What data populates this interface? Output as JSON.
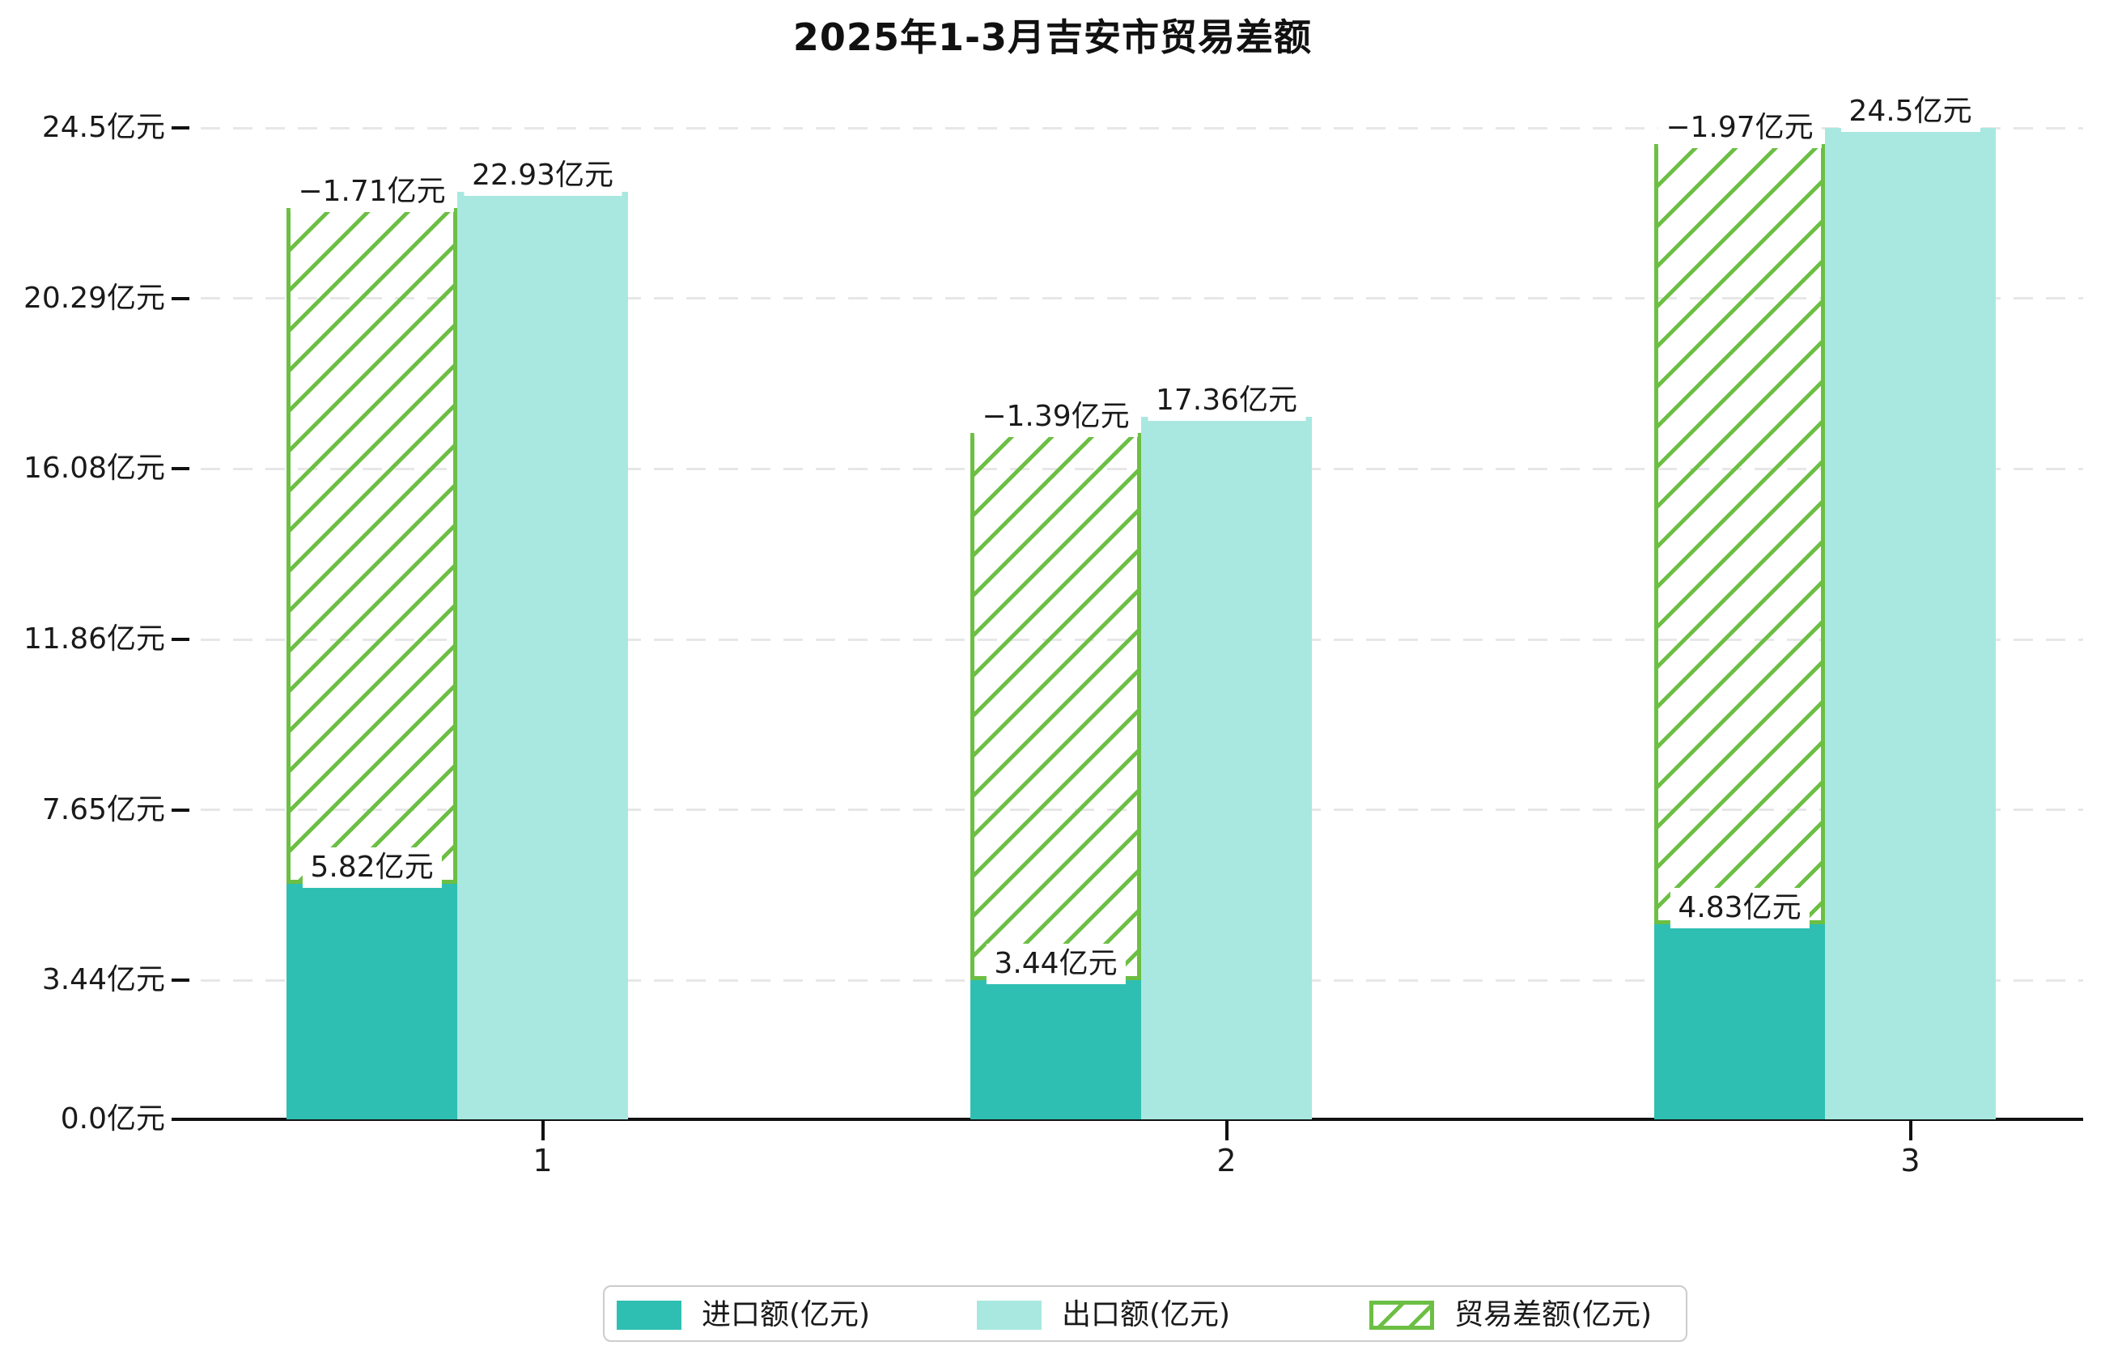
{
  "title": "2025年1-3月吉安市贸易差额",
  "chart_data": {
    "type": "bar",
    "categories": [
      "1",
      "2",
      "3"
    ],
    "series": [
      {
        "name": "进口额(亿元)",
        "role": "import",
        "values": [
          5.82,
          3.44,
          4.83
        ],
        "value_labels": [
          "5.82亿元",
          "3.44亿元",
          "4.83亿元"
        ],
        "color": "#2ebfb2",
        "style": "solid"
      },
      {
        "name": "出口额(亿元)",
        "role": "export",
        "values": [
          22.93,
          17.36,
          24.5
        ],
        "value_labels": [
          "22.93亿元",
          "17.36亿元",
          "24.5亿元"
        ],
        "color": "#a9e8e0",
        "style": "solid"
      },
      {
        "name": "贸易差额(亿元)",
        "role": "trade-balance",
        "values": [
          -1.71,
          -1.39,
          -1.97
        ],
        "value_labels": [
          "−1.71亿元",
          "−1.39亿元",
          "−1.97亿元"
        ],
        "color": "#6cbf44",
        "style": "hatched",
        "drawn_from_to": "import value up to export value"
      }
    ],
    "y_ticks": [
      {
        "value": 0.0,
        "label": "0.0亿元"
      },
      {
        "value": 3.44,
        "label": "3.44亿元"
      },
      {
        "value": 7.65,
        "label": "7.65亿元"
      },
      {
        "value": 11.86,
        "label": "11.86亿元"
      },
      {
        "value": 16.08,
        "label": "16.08亿元"
      },
      {
        "value": 20.29,
        "label": "20.29亿元"
      },
      {
        "value": 24.5,
        "label": "24.5亿元"
      }
    ],
    "ylim": [
      0,
      24.5
    ],
    "unit": "亿元",
    "grid": "horizontal-dashed",
    "legend_position": "bottom"
  },
  "colors": {
    "import_bar": "#2ebfb2",
    "export_bar": "#a9e8e0",
    "hatch_green": "#6cbf44",
    "axis": "#111111",
    "gridline": "#e7e7e7",
    "legend_border": "#cccccc",
    "background": "#ffffff",
    "text": "#1a1a1a"
  }
}
